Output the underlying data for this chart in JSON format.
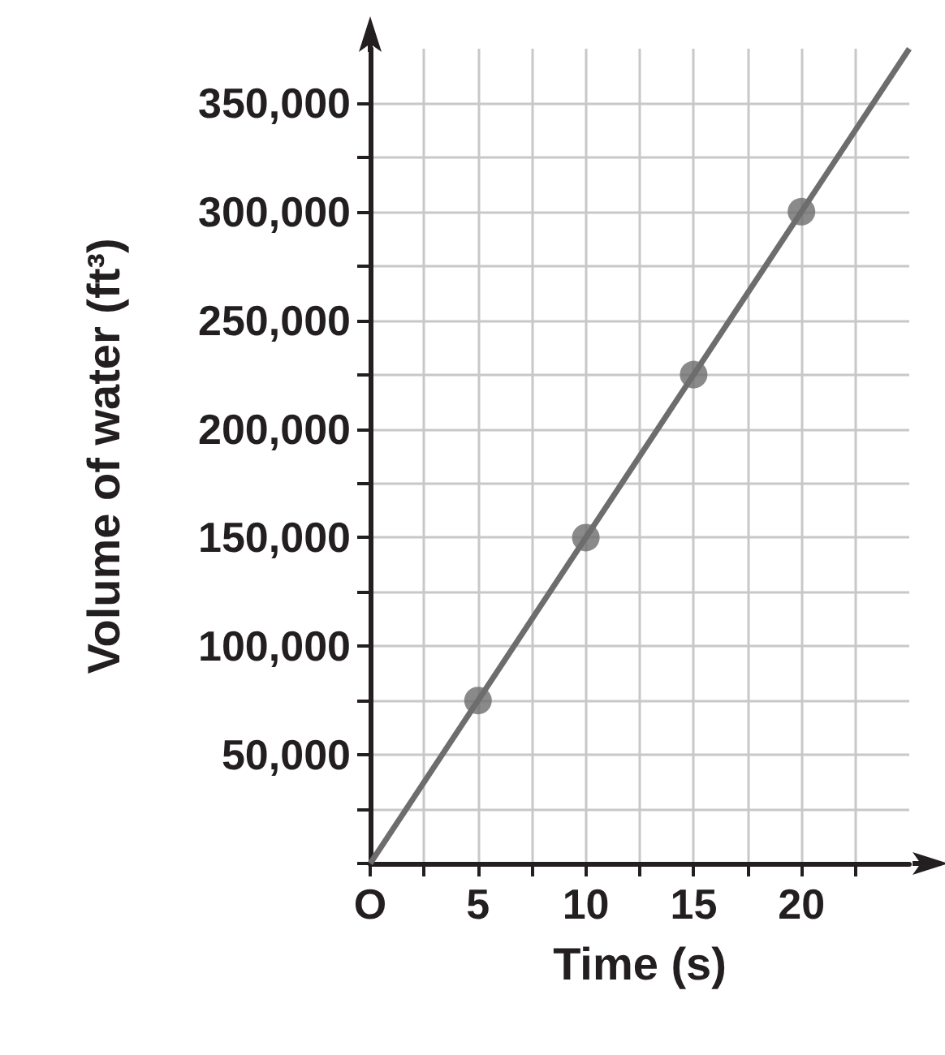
{
  "chart_data": {
    "type": "scatter",
    "xlabel": "Time (s)",
    "ylabel": "Volume of water (ft³)",
    "xlim": [
      0,
      25
    ],
    "ylim": [
      0,
      375000
    ],
    "xticks": [
      {
        "value": 0,
        "label": "O"
      },
      {
        "value": 2.5,
        "label": null
      },
      5,
      {
        "value": 7.5,
        "label": null
      },
      10,
      {
        "value": 12.5,
        "label": null
      },
      15,
      {
        "value": 17.5,
        "label": null
      },
      20,
      {
        "value": 22.5,
        "label": null
      }
    ],
    "yticks": [
      {
        "value": 0,
        "label": null
      },
      {
        "value": 25000,
        "label": null
      },
      {
        "value": 50000,
        "label": "50,000"
      },
      {
        "value": 75000,
        "label": null
      },
      {
        "value": 100000,
        "label": "100,000"
      },
      {
        "value": 125000,
        "label": null
      },
      {
        "value": 150000,
        "label": "150,000"
      },
      {
        "value": 175000,
        "label": null
      },
      {
        "value": 200000,
        "label": "200,000"
      },
      {
        "value": 225000,
        "label": null
      },
      {
        "value": 250000,
        "label": "250,000"
      },
      {
        "value": 275000,
        "label": null
      },
      {
        "value": 300000,
        "label": "300,000"
      },
      {
        "value": 325000,
        "label": null
      },
      {
        "value": 350000,
        "label": "350,000"
      }
    ],
    "grid": true,
    "marker": "circle",
    "series": [
      {
        "type": "line",
        "marker": "none",
        "color": "#6d6d6d",
        "x": [
          0,
          25
        ],
        "values": [
          0,
          375000
        ]
      },
      {
        "type": "scatter",
        "color": "#6d6d6d",
        "x": [
          5,
          10,
          15,
          20
        ],
        "values": [
          75000,
          150000,
          225000,
          300000
        ]
      }
    ]
  }
}
